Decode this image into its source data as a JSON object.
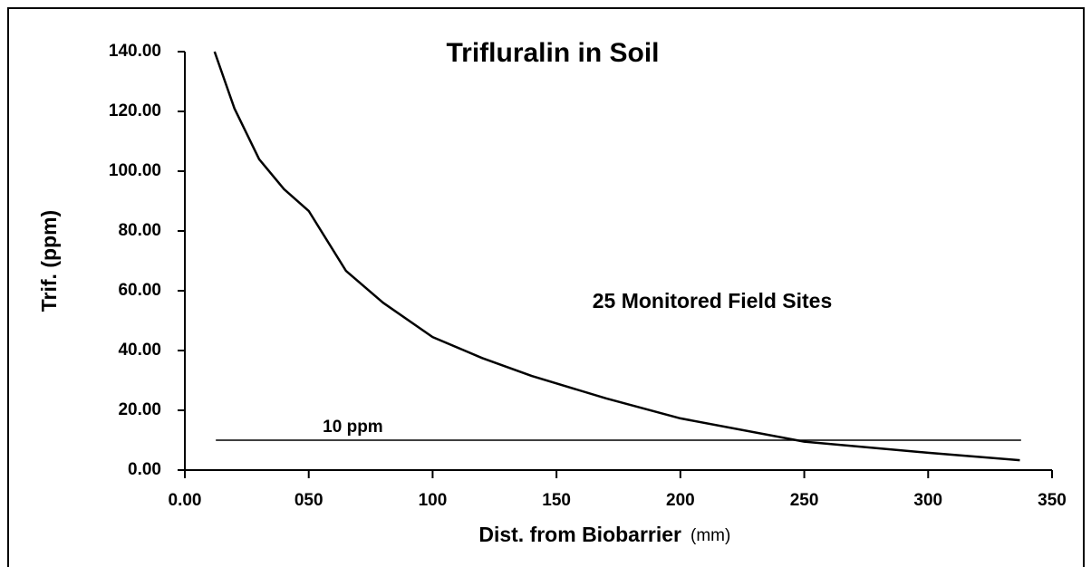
{
  "chart_data": {
    "type": "line",
    "title": "Trifluralin in Soil",
    "x_label": "Dist. from Biobarrier",
    "x_unit": "(mm)",
    "y_label": "Trif. (ppm)",
    "annotation": "25 Monitored Field Sites",
    "x": [
      12,
      20,
      30,
      40,
      50,
      65,
      80,
      100,
      120,
      140,
      170,
      200,
      250,
      300,
      337
    ],
    "values": [
      140,
      121,
      104,
      94,
      86.7,
      66.7,
      56,
      44.5,
      37.5,
      31.5,
      24,
      17.3,
      9.5,
      5.8,
      3.3
    ],
    "color": "#000000",
    "reference_line": {
      "y": 10,
      "x": [
        12.5,
        337.5
      ],
      "label": "10 ppm"
    },
    "xlim": [
      0,
      350
    ],
    "xticks": [
      {
        "value": 0,
        "label": "0.00"
      },
      {
        "value": 50,
        "label": "050"
      },
      100,
      150,
      200,
      250,
      300,
      350
    ],
    "ylim": [
      0,
      140
    ],
    "yticks": [
      {
        "value": 0,
        "label": "0.00"
      },
      {
        "value": 20,
        "label": "20.00"
      },
      {
        "value": 40,
        "label": "40.00"
      },
      {
        "value": 60,
        "label": "60.00"
      },
      {
        "value": 80,
        "label": "80.00"
      },
      {
        "value": 100,
        "label": "100.00"
      },
      {
        "value": 120,
        "label": "120.00"
      },
      {
        "value": 140,
        "label": "140.00"
      }
    ]
  }
}
